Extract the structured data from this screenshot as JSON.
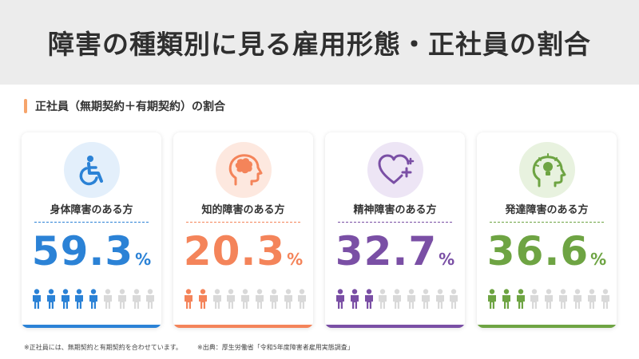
{
  "header": {
    "title": "障害の種類別に見る雇用形態・正社員の割合"
  },
  "section": {
    "title": "正社員（無期契約＋有期契約）の割合"
  },
  "cards": [
    {
      "label": "身体障害のある方",
      "value": "59.3",
      "unit": "%",
      "value_num": 59.3,
      "accent": "#2b82d6",
      "light": "#e3effb",
      "icon": "wheelchair-icon"
    },
    {
      "label": "知的障害のある方",
      "value": "20.3",
      "unit": "%",
      "value_num": 20.3,
      "accent": "#f4845a",
      "light": "#fde8df",
      "icon": "brain-icon"
    },
    {
      "label": "精神障害のある方",
      "value": "32.7",
      "unit": "%",
      "value_num": 32.7,
      "accent": "#7a4fa5",
      "light": "#ede5f5",
      "icon": "heart-plus-icon"
    },
    {
      "label": "発達障害のある方",
      "value": "36.6",
      "unit": "%",
      "value_num": 36.6,
      "accent": "#6ea443",
      "light": "#e8f2df",
      "icon": "lightbulb-head-icon"
    }
  ],
  "people_per_card": 9,
  "inactive_person_color": "#d9d9d9",
  "footnote": {
    "note": "※正社員には、無期契約と有期契約を合わせています。",
    "source": "※出典：厚生労働省「令和5年度障害者雇用実態調査」"
  }
}
